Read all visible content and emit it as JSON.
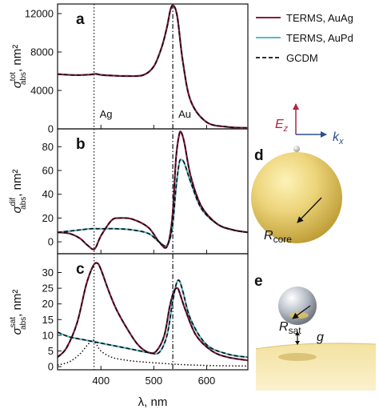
{
  "colors": {
    "auag": "#8b1a3c",
    "aupd": "#5ab7c9",
    "gcdm": "#111111",
    "ez": "#b0243e",
    "kx": "#2b4f8f"
  },
  "legend": {
    "auag": "TERMS, AuAg",
    "aupd": "TERMS, AuPd",
    "gcdm": "GCDM"
  },
  "xaxis": {
    "label_main": "λ, nm",
    "ticks": [
      "400",
      "500",
      "600"
    ]
  },
  "vlines": {
    "ag": 387,
    "au": 536
  },
  "ann": {
    "ag": "Ag",
    "au": "Au"
  },
  "panels": {
    "a": {
      "label": "a",
      "ylabel": {
        "sym": "σ",
        "sup": "tot",
        "sub": "abs",
        "unit": ", nm²"
      },
      "ylim": [
        0,
        13000
      ],
      "yticks": [
        "0",
        "4000",
        "8000",
        "12000"
      ]
    },
    "b": {
      "label": "b",
      "ylabel": {
        "sym": "σ",
        "sup": "dif",
        "sub": "abs",
        "unit": ", nm²"
      },
      "ylim": [
        -10,
        95
      ],
      "yticks": [
        "0",
        "20",
        "40",
        "60",
        "80"
      ]
    },
    "c": {
      "label": "c",
      "ylabel": {
        "sym": "σ",
        "sup": "sat",
        "sub": "abs",
        "unit": ", nm²"
      },
      "ylim": [
        -1,
        36
      ],
      "yticks": [
        "0",
        "5",
        "10",
        "15",
        "20",
        "25",
        "30"
      ]
    }
  },
  "illus": {
    "d": {
      "label": "d",
      "ez_sym": "E",
      "ez_sub": "z",
      "kx_sym": "k",
      "kx_sub": "x",
      "r_sym": "R",
      "r_sub": "core"
    },
    "e": {
      "label": "e",
      "r_sym": "R",
      "r_sub": "sat",
      "g": "g"
    }
  },
  "chart_data": [
    {
      "type": "line",
      "panel": "a",
      "xlim": [
        318,
        678
      ],
      "ylim": [
        0,
        13000
      ],
      "series": [
        {
          "name": "TERMS, AuAg",
          "x": [
            318,
            340,
            360,
            380,
            390,
            400,
            420,
            450,
            480,
            500,
            515,
            525,
            532,
            538,
            545,
            555,
            570,
            600,
            640,
            678
          ],
          "y": [
            5700,
            5620,
            5600,
            5650,
            5720,
            5620,
            5550,
            5500,
            5600,
            6500,
            8500,
            10600,
            12500,
            12800,
            11500,
            7000,
            2900,
            700,
            200,
            100
          ]
        },
        {
          "name": "TERMS, AuPd",
          "x": [
            318,
            340,
            360,
            380,
            390,
            400,
            420,
            450,
            480,
            500,
            515,
            525,
            532,
            538,
            545,
            555,
            570,
            600,
            640,
            678
          ],
          "y": [
            5700,
            5620,
            5600,
            5650,
            5720,
            5620,
            5550,
            5500,
            5600,
            6500,
            8500,
            10600,
            12500,
            12800,
            11500,
            7000,
            2900,
            700,
            200,
            100
          ]
        },
        {
          "name": "GCDM",
          "x": [
            318,
            340,
            360,
            380,
            390,
            400,
            420,
            450,
            480,
            500,
            515,
            525,
            532,
            538,
            545,
            555,
            570,
            600,
            640,
            678
          ],
          "y": [
            5700,
            5620,
            5600,
            5650,
            5720,
            5620,
            5550,
            5500,
            5600,
            6500,
            8500,
            10600,
            12500,
            12800,
            11500,
            7000,
            2900,
            700,
            200,
            100
          ]
        }
      ]
    },
    {
      "type": "line",
      "panel": "b",
      "xlim": [
        318,
        678
      ],
      "ylim": [
        -10,
        95
      ],
      "series": [
        {
          "name": "TERMS, AuAg",
          "x": [
            318,
            340,
            360,
            375,
            388,
            400,
            420,
            435,
            460,
            490,
            510,
            525,
            535,
            542,
            548,
            552,
            558,
            570,
            590,
            620,
            650,
            678
          ],
          "y": [
            8,
            7,
            3,
            -3,
            -6,
            5,
            18,
            20,
            19,
            12,
            0,
            -4,
            20,
            70,
            90,
            92,
            83,
            55,
            30,
            15,
            10,
            8
          ]
        },
        {
          "name": "TERMS, AuPd",
          "x": [
            318,
            340,
            360,
            380,
            400,
            430,
            460,
            490,
            510,
            525,
            535,
            542,
            548,
            552,
            558,
            570,
            590,
            620,
            650,
            678
          ],
          "y": [
            8,
            9,
            10,
            11,
            11,
            11,
            10,
            7,
            0,
            -3,
            12,
            45,
            66,
            69,
            66,
            50,
            28,
            15,
            10,
            8
          ]
        },
        {
          "name": "GCDM",
          "x": [
            318,
            340,
            360,
            375,
            388,
            400,
            420,
            435,
            460,
            490,
            510,
            525,
            535,
            542,
            548,
            552,
            558,
            570,
            590,
            620,
            650,
            678
          ],
          "y": [
            8,
            7,
            3,
            -3,
            -6,
            5,
            18,
            20,
            19,
            12,
            0,
            -4,
            20,
            70,
            90,
            92,
            83,
            55,
            30,
            15,
            10,
            8
          ]
        },
        {
          "name": "GCDM",
          "x": [
            318,
            340,
            360,
            380,
            400,
            430,
            460,
            490,
            510,
            525,
            535,
            542,
            548,
            552,
            558,
            570,
            590,
            620,
            650,
            678
          ],
          "y": [
            8,
            9,
            10,
            11,
            11,
            11,
            10,
            7,
            0,
            -3,
            12,
            45,
            66,
            69,
            66,
            50,
            28,
            15,
            10,
            8
          ]
        }
      ]
    },
    {
      "type": "line",
      "panel": "c",
      "xlim": [
        318,
        678
      ],
      "ylim": [
        -1,
        36
      ],
      "series": [
        {
          "name": "TERMS, AuAg",
          "x": [
            318,
            335,
            355,
            372,
            385,
            393,
            400,
            415,
            430,
            450,
            470,
            490,
            505,
            520,
            530,
            538,
            545,
            550,
            560,
            580,
            610,
            640,
            678
          ],
          "y": [
            3,
            6,
            14,
            26,
            32,
            33,
            31,
            24,
            18,
            12,
            7,
            4.5,
            5,
            10,
            19,
            24,
            25,
            23,
            18,
            10,
            5,
            3,
            2
          ]
        },
        {
          "name": "TERMS, AuPd",
          "x": [
            318,
            340,
            370,
            400,
            430,
            460,
            490,
            510,
            525,
            535,
            542,
            548,
            555,
            570,
            600,
            640,
            678
          ],
          "y": [
            11,
            9.5,
            8.5,
            7.5,
            6.5,
            5.5,
            4.5,
            4.5,
            10,
            20,
            26,
            27.5,
            24,
            15,
            7,
            4,
            3
          ]
        },
        {
          "name": "GCDM",
          "x": [
            318,
            335,
            355,
            372,
            385,
            393,
            400,
            415,
            430,
            450,
            470,
            490,
            505,
            520,
            530,
            538,
            545,
            550,
            560,
            580,
            610,
            640,
            678
          ],
          "y": [
            3,
            6,
            14,
            26,
            32,
            33,
            31,
            24,
            18,
            12,
            7,
            4.5,
            5,
            10,
            19,
            24,
            25,
            23,
            18,
            10,
            5,
            3,
            2
          ]
        },
        {
          "name": "GCDM",
          "x": [
            318,
            340,
            370,
            400,
            430,
            460,
            490,
            510,
            525,
            535,
            542,
            548,
            555,
            570,
            600,
            640,
            678
          ],
          "y": [
            11,
            9.5,
            8.5,
            7.5,
            6.5,
            5.5,
            4.5,
            4.5,
            10,
            20,
            26,
            27.5,
            24,
            15,
            7,
            4,
            3
          ]
        },
        {
          "name": "",
          "x": [
            318,
            340,
            360,
            375,
            385,
            392,
            400,
            420,
            450,
            480,
            520,
            560,
            620,
            678
          ],
          "y": [
            0.5,
            1.5,
            4,
            7,
            8.5,
            7,
            5,
            3,
            2,
            1.5,
            1,
            0.6,
            0.3,
            0.2
          ]
        }
      ]
    }
  ]
}
